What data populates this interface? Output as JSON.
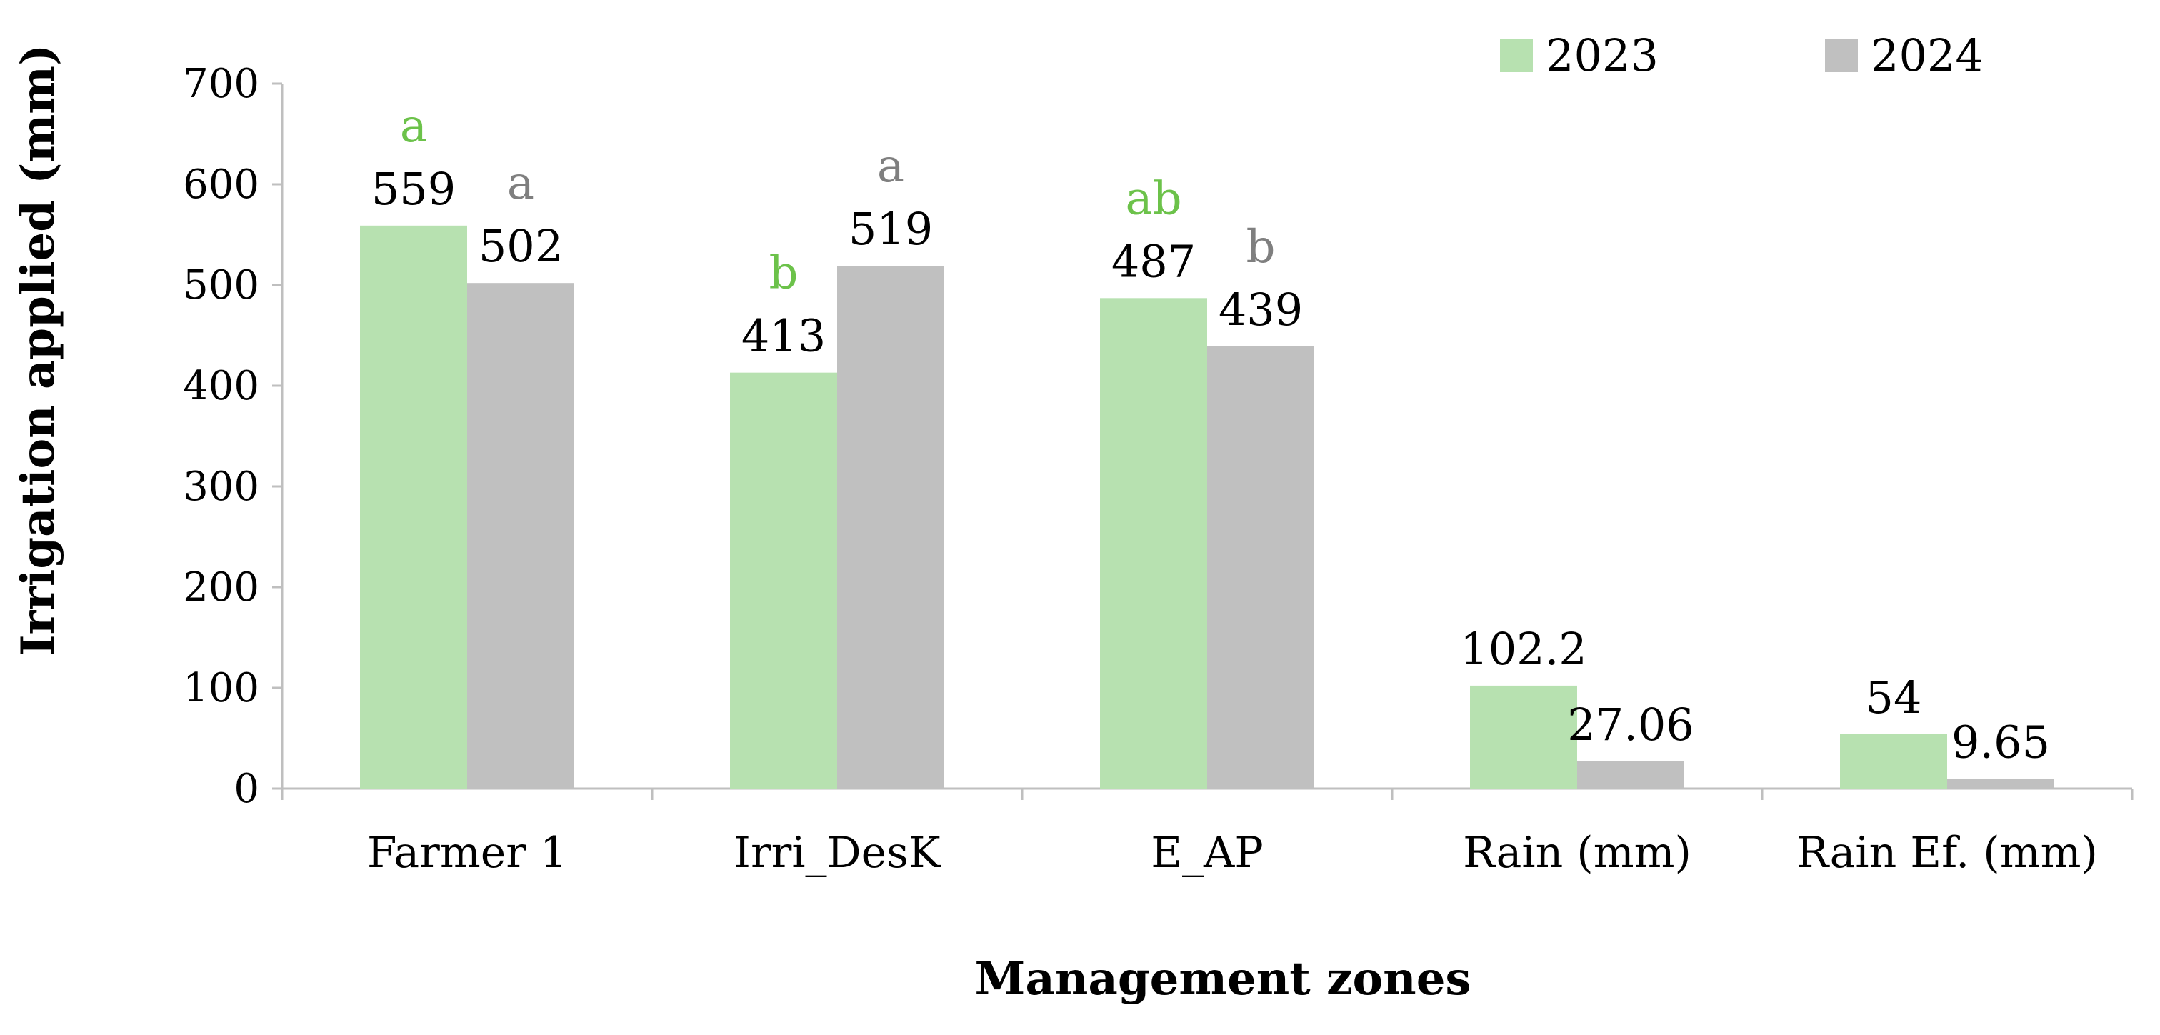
{
  "chart_data": {
    "type": "bar",
    "title": "",
    "xlabel": "Management zones",
    "ylabel": "Irrigation applied (mm)",
    "ylim": [
      0,
      700
    ],
    "yticks": [
      0,
      100,
      200,
      300,
      400,
      500,
      600,
      700
    ],
    "grid": false,
    "legend_position": "top-right",
    "categories": [
      "Farmer 1",
      "Irri_DesK",
      "E_AP",
      "Rain (mm)",
      "Rain Ef. (mm)"
    ],
    "series": [
      {
        "name": "2023",
        "color": "#b7e1b0",
        "letter_color": "#6cc24a",
        "values": [
          559,
          413,
          487,
          102.2,
          54
        ],
        "value_labels": [
          "559",
          "413",
          "487",
          "102.2",
          "54"
        ],
        "letters": [
          "a",
          "b",
          "ab",
          "",
          ""
        ]
      },
      {
        "name": "2024",
        "color": "#c0c0c0",
        "letter_color": "#7f7f7f",
        "values": [
          502,
          519,
          439,
          27.06,
          9.65
        ],
        "value_labels": [
          "502",
          "519",
          "439",
          "27.06",
          "9.65"
        ],
        "letters": [
          "a",
          "a",
          "b",
          "",
          ""
        ]
      }
    ],
    "axis_color": "#bfbfbf"
  }
}
